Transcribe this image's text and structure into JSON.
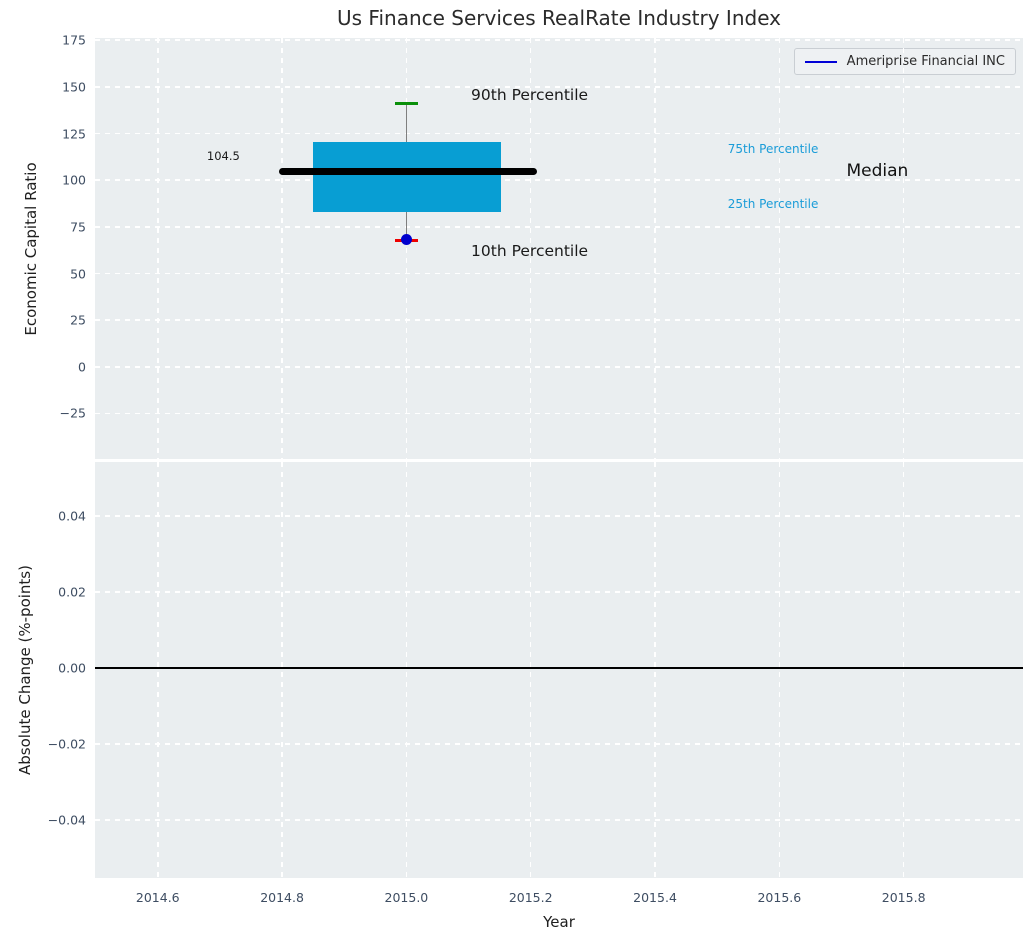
{
  "title": "Us Finance Services RealRate Industry Index",
  "legend": {
    "label": "Ameriprise Financial INC",
    "line_color": "#0000d6"
  },
  "colors": {
    "plot_background": "#eaeef0",
    "grid": "#ffffff",
    "tick_label": "#3e4d62",
    "box_fill": "#089ed3",
    "median_line": "#000000",
    "whisker_line": "#7f7f7f",
    "upper_cap": "#0a8f0a",
    "lower_cap": "#ee0000",
    "company_point": "#0000cd",
    "percentile_text": "#1a9cd8",
    "zero_line": "#000000"
  },
  "chart_data": {
    "type": "box",
    "title": "Us Finance Services RealRate Industry Index",
    "x": {
      "label": "Year",
      "lim": [
        2014.499,
        2015.992
      ],
      "ticks": [
        2014.6,
        2014.8,
        2015.0,
        2015.2,
        2015.4,
        2015.6,
        2015.8
      ],
      "tick_labels": [
        "2014.6",
        "2014.8",
        "2015.0",
        "2015.2",
        "2015.4",
        "2015.6",
        "2015.8"
      ]
    },
    "top_panel": {
      "ylabel": "Economic Capital Ratio",
      "ylim": [
        -49.4,
        176.2
      ],
      "yticks": [
        175,
        150,
        125,
        100,
        75,
        50,
        25,
        0,
        -25
      ],
      "ytick_labels": [
        "175",
        "150",
        "125",
        "100",
        "75",
        "50",
        "25",
        "0",
        "−25"
      ],
      "grid": "dashed-white",
      "legend_position": "upper right",
      "box": {
        "year": 2015.0,
        "x_left": 2014.849,
        "x_right": 2015.152,
        "p10": 67.5,
        "p25": 82.7,
        "median": 104.5,
        "p75": 120.5,
        "p90": 141.0,
        "median_x_left": 2014.795,
        "median_x_right": 2015.21,
        "cap_half_width": 0.019
      },
      "series": [
        {
          "name": "Ameriprise Financial INC",
          "type": "scatter",
          "x": [
            2015.0
          ],
          "y": [
            68.4
          ]
        }
      ],
      "annotations": [
        {
          "text": "104.5",
          "x": 2014.732,
          "y": 113.1,
          "ha": "right",
          "color": "#1a1a1a",
          "size": 11.5
        },
        {
          "text": "90th Percentile",
          "x": 2015.104,
          "y": 145.5,
          "ha": "left",
          "color": "#1a1a1a",
          "size": 15.5
        },
        {
          "text": "10th Percentile",
          "x": 2015.104,
          "y": 61.8,
          "ha": "left",
          "color": "#1a1a1a",
          "size": 15.5
        },
        {
          "text": "75th Percentile",
          "x": 2015.517,
          "y": 116.9,
          "ha": "left",
          "color": "#1a9cd8",
          "size": 12
        },
        {
          "text": "25th Percentile",
          "x": 2015.517,
          "y": 87.4,
          "ha": "left",
          "color": "#1a9cd8",
          "size": 12
        },
        {
          "text": "Median",
          "x": 2015.708,
          "y": 105.0,
          "ha": "left",
          "color": "#111111",
          "size": 17
        }
      ]
    },
    "bottom_panel": {
      "ylabel": "Absolute Change (%-points)",
      "ylim": [
        -0.0553,
        0.0542
      ],
      "yticks": [
        0.04,
        0.02,
        0.0,
        -0.02,
        -0.04
      ],
      "ytick_labels": [
        "0.04",
        "0.02",
        "0.00",
        "−0.02",
        "−0.04"
      ],
      "grid": "dashed-white",
      "zero_line_y": 0.0,
      "series": []
    }
  }
}
